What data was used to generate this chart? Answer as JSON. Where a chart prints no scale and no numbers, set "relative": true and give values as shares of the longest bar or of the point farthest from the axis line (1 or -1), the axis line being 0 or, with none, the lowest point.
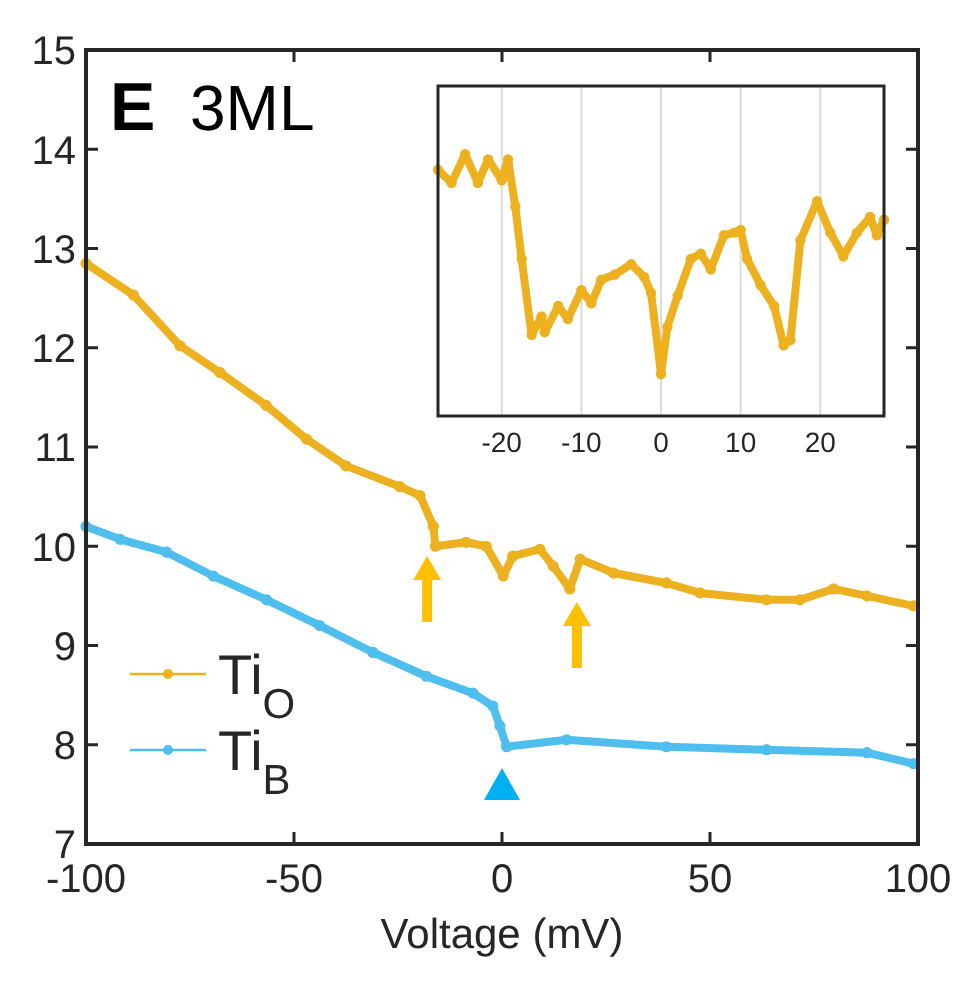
{
  "chart_data": [
    {
      "type": "line",
      "title": "E",
      "subtitle": "3ML",
      "xlabel": "Voltage (mV)",
      "xlim": [
        -100,
        100
      ],
      "xticks": [
        -100,
        -50,
        0,
        50,
        100
      ],
      "ylim": [
        7,
        15
      ],
      "yticks": [
        7,
        8,
        9,
        10,
        11,
        12,
        13,
        14,
        15
      ],
      "marker": "circle",
      "legend": "bottom left",
      "grid": false,
      "series": [
        {
          "name": "Ti$_{O}$",
          "color": "#edb120",
          "x": [
            -100,
            -88.6,
            -77.4,
            -67.8,
            -56.7,
            -47,
            -37.5,
            -24.5,
            -19.7,
            -16.5,
            -16,
            -8.6,
            -3.8,
            0.3,
            2.6,
            9.1,
            12.3,
            16.3,
            18.8,
            26.8,
            39.5,
            47.6,
            63.6,
            71.6,
            79.7,
            87.7,
            98.9
          ],
          "values": [
            12.85,
            12.53,
            12.02,
            11.75,
            11.42,
            11.08,
            10.81,
            10.6,
            10.51,
            10.2,
            10,
            10.04,
            10,
            9.7,
            9.9,
            9.97,
            9.8,
            9.57,
            9.87,
            9.73,
            9.63,
            9.53,
            9.46,
            9.46,
            9.57,
            9.5,
            9.4
          ]
        },
        {
          "name": "Ti$_{B}$",
          "color": "#4dbeee",
          "x": [
            -100,
            -91.8,
            -80.6,
            -69.4,
            -56.6,
            -43.8,
            -31,
            -18.2,
            -7,
            -2.2,
            -0.5,
            1.1,
            15.5,
            39.5,
            63.6,
            87.7,
            98.9
          ],
          "values": [
            10.2,
            10.07,
            9.94,
            9.7,
            9.46,
            9.2,
            8.93,
            8.69,
            8.52,
            8.39,
            8.19,
            7.98,
            8.05,
            7.98,
            7.95,
            7.92,
            7.81
          ]
        }
      ]
    },
    {
      "type": "line",
      "relative": true,
      "xlim": [
        -28,
        28
      ],
      "xticks": [
        -20,
        -10,
        0,
        10,
        20
      ],
      "grid": "x",
      "marker": "circle",
      "series": [
        {
          "color": "#edb120",
          "x": [
            -28,
            -26.3,
            -24.6,
            -23,
            -21.7,
            -20,
            -19.2,
            -18.3,
            -17.5,
            -16.25,
            -15,
            -14.6,
            -12.9,
            -11.7,
            -10,
            -8.75,
            -7.5,
            -5.8,
            -3.75,
            -2.1,
            -1.25,
            0,
            0.8,
            2.1,
            3.75,
            5,
            6.25,
            7.9,
            9.2,
            10,
            10.8,
            12.5,
            14.2,
            15.4,
            16.25,
            17.5,
            19.6,
            21.25,
            22.9,
            24.6,
            26.25,
            27.1,
            28
          ],
          "values": [
            0.94,
            0.89,
            1,
            0.89,
            0.98,
            0.9,
            0.98,
            0.8,
            0.6,
            0.31,
            0.38,
            0.32,
            0.42,
            0.37,
            0.48,
            0.43,
            0.52,
            0.54,
            0.58,
            0.53,
            0.47,
            0.16,
            0.34,
            0.46,
            0.6,
            0.62,
            0.56,
            0.69,
            0.7,
            0.71,
            0.6,
            0.5,
            0.42,
            0.27,
            0.29,
            0.67,
            0.82,
            0.7,
            0.61,
            0.7,
            0.76,
            0.69,
            0.75
          ]
        }
      ]
    }
  ]
}
